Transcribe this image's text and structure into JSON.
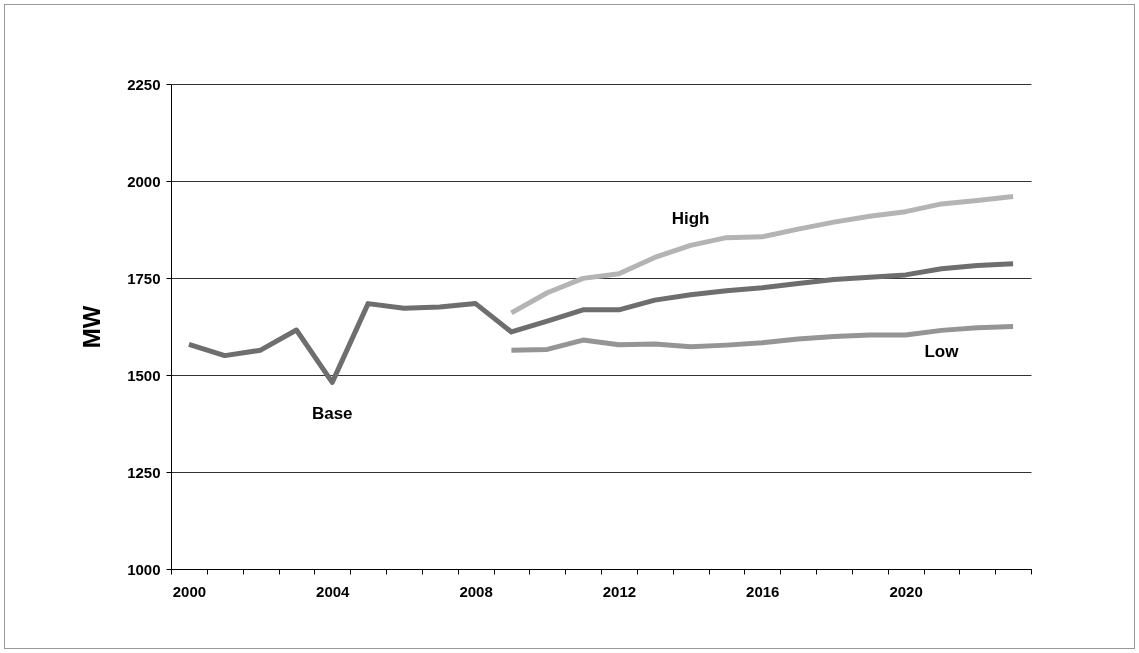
{
  "chart_data": {
    "type": "line",
    "ylabel": "MW",
    "categories": [
      "2000",
      null,
      null,
      null,
      "2004",
      null,
      null,
      null,
      "2008",
      null,
      null,
      null,
      "2012",
      null,
      null,
      null,
      "2016",
      null,
      null,
      null,
      "2020",
      null,
      null,
      null
    ],
    "series": [
      {
        "name": "Base",
        "color": "#6e6e6e",
        "values": [
          1579,
          1550,
          1564,
          1616,
          1481,
          1684,
          1672,
          1675,
          1684,
          1611,
          1639,
          1668,
          1668,
          1693,
          1707,
          1717,
          1725,
          1736,
          1746,
          1752,
          1758,
          1774,
          1782,
          1787
        ]
      },
      {
        "name": "High",
        "color": "#b4b4b4",
        "values": [
          null,
          null,
          null,
          null,
          null,
          null,
          null,
          null,
          null,
          1660,
          1712,
          1749,
          1761,
          1803,
          1834,
          1854,
          1856,
          1876,
          1894,
          1909,
          1921,
          1941,
          1950,
          1960
        ]
      },
      {
        "name": "Low",
        "color": "#959595",
        "values": [
          null,
          null,
          null,
          null,
          null,
          null,
          null,
          null,
          null,
          1564,
          1566,
          1590,
          1578,
          1580,
          1573,
          1577,
          1583,
          1593,
          1599,
          1603,
          1603,
          1615,
          1622,
          1625
        ]
      }
    ],
    "ylim": [
      1000,
      2250
    ],
    "yticks": [
      1000,
      1250,
      1500,
      1750,
      2000,
      2250
    ],
    "grid": "y",
    "line_style": "solid"
  }
}
